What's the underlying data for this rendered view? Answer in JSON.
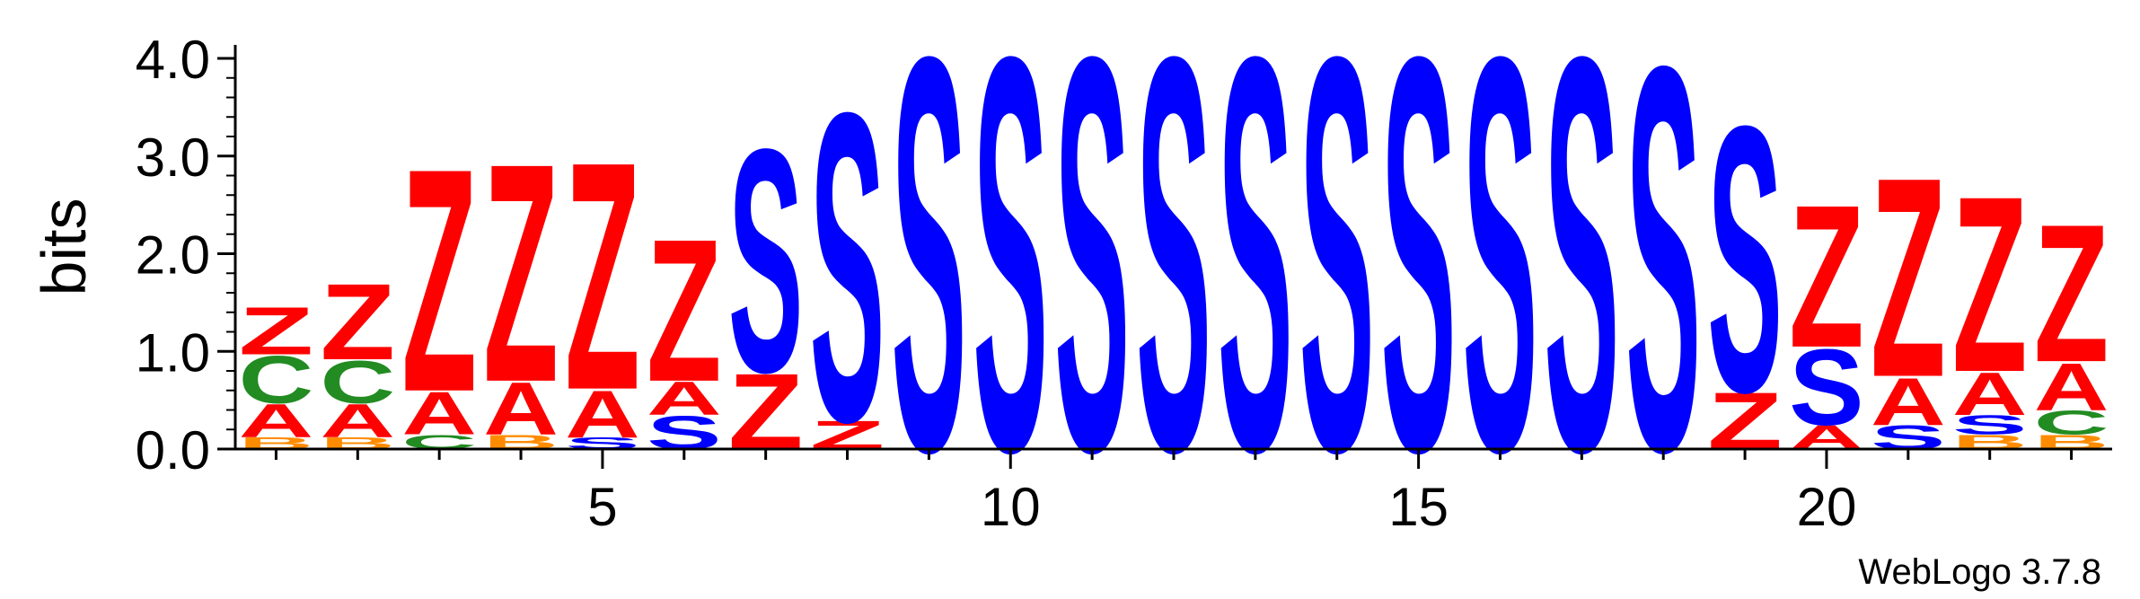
{
  "chart_data": {
    "type": "sequence-logo",
    "ylabel": "bits",
    "ylim": [
      0,
      4.3
    ],
    "y_ticks": [
      "0.0",
      "1.0",
      "2.0",
      "3.0",
      "4.0"
    ],
    "x_ticks": [
      "5",
      "10",
      "15",
      "20"
    ],
    "footer": "WebLogo 3.7.8",
    "colors": {
      "Z": "#ff0000",
      "S": "#0000ff",
      "A": "#ff0000",
      "C": "#228b22",
      "B": "#ff8c00",
      "T": "#800080",
      "P": "#ff8c00",
      "Q": "#ff0000"
    },
    "positions": [
      {
        "pos": 1,
        "stack": [
          [
            "B",
            0.12
          ],
          [
            "A",
            0.35
          ],
          [
            "C",
            0.5
          ],
          [
            "Z",
            0.5
          ]
        ]
      },
      {
        "pos": 2,
        "stack": [
          [
            "B",
            0.12
          ],
          [
            "A",
            0.35
          ],
          [
            "C",
            0.45
          ],
          [
            "Z",
            0.8
          ]
        ]
      },
      {
        "pos": 3,
        "stack": [
          [
            "C",
            0.15
          ],
          [
            "A",
            0.45
          ],
          [
            "Z",
            2.35
          ]
        ]
      },
      {
        "pos": 4,
        "stack": [
          [
            "B",
            0.15
          ],
          [
            "A",
            0.55
          ],
          [
            "Z",
            2.3
          ]
        ]
      },
      {
        "pos": 5,
        "stack": [
          [
            "S",
            0.12
          ],
          [
            "A",
            0.5
          ],
          [
            "Z",
            2.4
          ]
        ]
      },
      {
        "pos": 6,
        "stack": [
          [
            "S",
            0.35
          ],
          [
            "A",
            0.35
          ],
          [
            "Z",
            1.5
          ]
        ]
      },
      {
        "pos": 7,
        "stack": [
          [
            "Z",
            0.8
          ],
          [
            "S",
            2.35
          ]
        ]
      },
      {
        "pos": 8,
        "stack": [
          [
            "Z",
            0.3
          ],
          [
            "S",
            3.25
          ]
        ]
      },
      {
        "pos": 9,
        "stack": [
          [
            "S",
            4.15
          ]
        ]
      },
      {
        "pos": 10,
        "stack": [
          [
            "S",
            4.15
          ]
        ]
      },
      {
        "pos": 11,
        "stack": [
          [
            "S",
            4.15
          ]
        ]
      },
      {
        "pos": 12,
        "stack": [
          [
            "S",
            4.15
          ]
        ]
      },
      {
        "pos": 13,
        "stack": [
          [
            "S",
            4.15
          ]
        ]
      },
      {
        "pos": 14,
        "stack": [
          [
            "S",
            4.15
          ]
        ]
      },
      {
        "pos": 15,
        "stack": [
          [
            "S",
            4.15
          ]
        ]
      },
      {
        "pos": 16,
        "stack": [
          [
            "S",
            4.15
          ]
        ]
      },
      {
        "pos": 17,
        "stack": [
          [
            "S",
            4.15
          ]
        ]
      },
      {
        "pos": 18,
        "stack": [
          [
            "S",
            4.05
          ]
        ]
      },
      {
        "pos": 19,
        "stack": [
          [
            "Z",
            0.6
          ],
          [
            "S",
            2.8
          ]
        ]
      },
      {
        "pos": 20,
        "stack": [
          [
            "A",
            0.25
          ],
          [
            "S",
            0.8
          ],
          [
            "Z",
            1.5
          ]
        ]
      },
      {
        "pos": 21,
        "stack": [
          [
            "S",
            0.25
          ],
          [
            "A",
            0.5
          ],
          [
            "Z",
            2.1
          ]
        ]
      },
      {
        "pos": 22,
        "stack": [
          [
            "B",
            0.15
          ],
          [
            "S",
            0.2
          ],
          [
            "A",
            0.45
          ],
          [
            "Z",
            1.85
          ]
        ]
      },
      {
        "pos": 23,
        "stack": [
          [
            "B",
            0.15
          ],
          [
            "C",
            0.25
          ],
          [
            "A",
            0.5
          ],
          [
            "Z",
            1.45
          ]
        ]
      }
    ]
  }
}
